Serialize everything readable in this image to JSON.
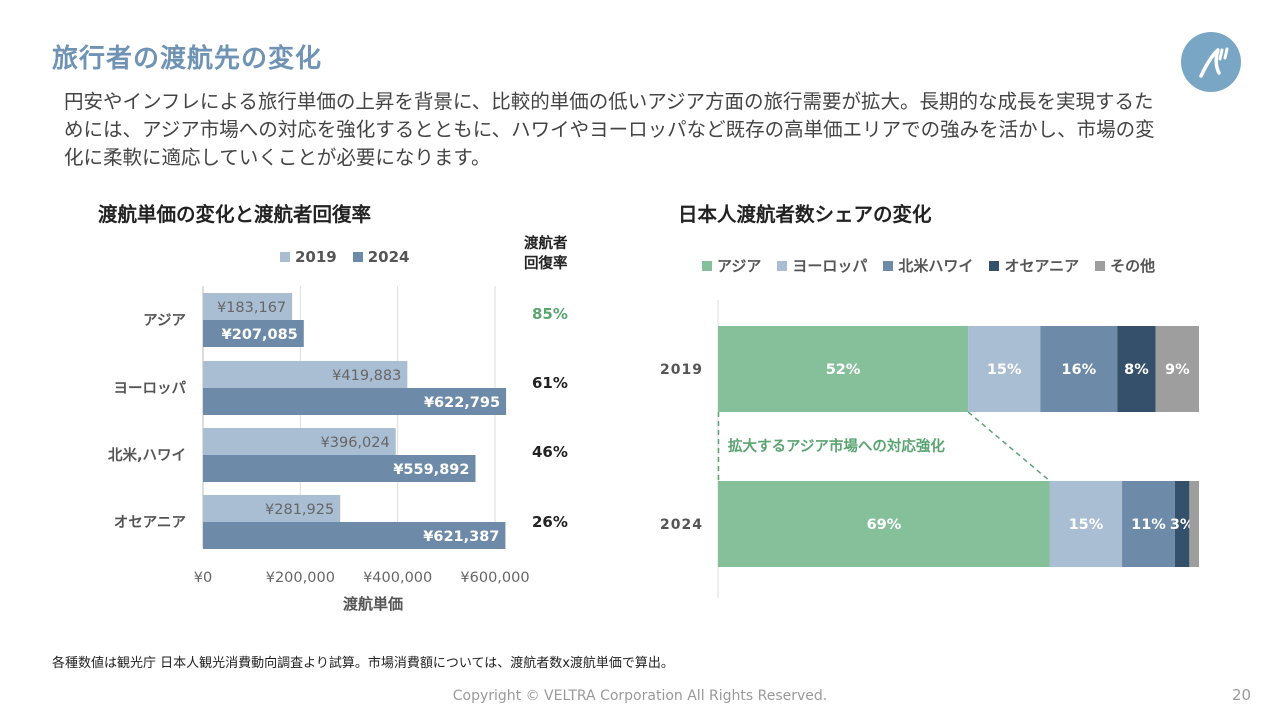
{
  "header": {
    "title": "旅行者の渡航先の変化",
    "lead": "円安やインフレによる旅行単価の上昇を背景に、比較的単価の低いアジア方面の旅行需要が拡大。長期的な成長を実現するためには、アジア市場への対応を強化するとともに、ハワイやヨーロッパなど既存の高単価エリアでの強みを活かし、市場の変化に柔軟に適応していくことが必要になります。"
  },
  "colors": {
    "title": "#6f93b4",
    "bar2019": "#a9bdd3",
    "bar2024": "#6d8ba9",
    "asia": "#86c09a",
    "europe": "#a9bdd3",
    "na_hawaii": "#6d8ba9",
    "oceania": "#34506b",
    "other": "#9e9e9e",
    "recovery_asia": "#5aa472",
    "logo": "#7aa6c6"
  },
  "chart_data": [
    {
      "type": "bar",
      "orientation": "horizontal",
      "title": "渡航単価の変化と渡航者回復率",
      "categories": [
        "アジア",
        "ヨーロッパ",
        "北米,ハワイ",
        "オセアニア"
      ],
      "series": [
        {
          "name": "2019",
          "values": [
            183167,
            419883,
            396024,
            281925
          ],
          "labels": [
            "¥183,167",
            "¥419,883",
            "¥396,024",
            "¥281,925"
          ]
        },
        {
          "name": "2024",
          "values": [
            207085,
            622795,
            559892,
            621387
          ],
          "labels": [
            "¥207,085",
            "¥622,795",
            "¥559,892",
            "¥621,387"
          ]
        }
      ],
      "xlabel": "渡航単価",
      "xlim": [
        0,
        600000
      ],
      "xticks": [
        "¥0",
        "¥200,000",
        "¥400,000",
        "¥600,000"
      ],
      "legend_position": "top",
      "grid": true,
      "recovery_header": [
        "渡航者",
        "回復率"
      ],
      "recovery_rates": [
        "85%",
        "61%",
        "46%",
        "26%"
      ]
    },
    {
      "type": "bar",
      "orientation": "horizontal",
      "stacked": true,
      "title": "日本人渡航者数シェアの変化",
      "categories": [
        "2019",
        "2024"
      ],
      "series": [
        {
          "name": "アジア",
          "values": [
            52,
            69
          ],
          "labels": [
            "52%",
            "69%"
          ]
        },
        {
          "name": "ヨーロッパ",
          "values": [
            15,
            15
          ],
          "labels": [
            "15%",
            "15%"
          ]
        },
        {
          "name": "北米ハワイ",
          "values": [
            16,
            11
          ],
          "labels": [
            "16%",
            "11%"
          ]
        },
        {
          "name": "オセアニア",
          "values": [
            8,
            3
          ],
          "labels": [
            "8%",
            "3%"
          ]
        },
        {
          "name": "その他",
          "values": [
            9,
            2
          ],
          "labels": [
            "9%",
            ""
          ]
        }
      ],
      "xlim": [
        0,
        100
      ],
      "legend_position": "top",
      "annotation": "拡大するアジア市場への対応強化"
    }
  ],
  "footer": {
    "note": "各種数値は観光庁 日本人観光消費動向調査より試算。市場消費額については、渡航者数x渡航単価で算出。",
    "copyright": "Copyright © VELTRA Corporation All Rights Reserved.",
    "page": "20"
  }
}
